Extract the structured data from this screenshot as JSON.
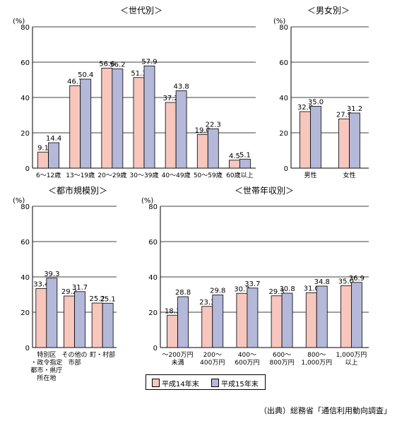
{
  "legend": {
    "items": [
      "平成14年末",
      "平成15年末"
    ]
  },
  "source": "（出典）総務省「通信利用動向調査」",
  "colors": {
    "series1": "#f7c6bd",
    "series2": "#b4b8d9",
    "grid": "#000000",
    "stroke": "#000000"
  },
  "chart_data": [
    {
      "type": "bar",
      "title": "＜世代別＞",
      "unit": "(%)",
      "ylim": [
        0,
        80
      ],
      "yticks": [
        "0",
        "20",
        "40",
        "60",
        "80"
      ],
      "grid": true,
      "categories": [
        [
          "6～12歳"
        ],
        [
          "13～19歳"
        ],
        [
          "20～29歳"
        ],
        [
          "30～39歳"
        ],
        [
          "40～49歳"
        ],
        [
          "50～59歳"
        ],
        [
          "60歳以上"
        ]
      ],
      "series": [
        {
          "name": "平成14年末",
          "values": [
            9.1,
            46.7,
            56.6,
            51.3,
            37.2,
            19.0,
            4.5
          ],
          "labels": [
            "9.1",
            "46.7",
            "56.6",
            "51.3",
            "37.2",
            "19.0",
            "4.5"
          ]
        },
        {
          "name": "平成15年末",
          "values": [
            14.4,
            50.4,
            56.2,
            57.9,
            43.8,
            22.3,
            5.1
          ],
          "labels": [
            "14.4",
            "50.4",
            "56.2",
            "57.9",
            "43.8",
            "22.3",
            "5.1"
          ]
        }
      ]
    },
    {
      "type": "bar",
      "title": "＜男女別＞",
      "unit": "(%)",
      "ylim": [
        0,
        80
      ],
      "yticks": [
        "0",
        "20",
        "40",
        "60",
        "80"
      ],
      "grid": true,
      "categories": [
        [
          "男性"
        ],
        [
          "女性"
        ]
      ],
      "series": [
        {
          "name": "平成14年末",
          "values": [
            32.0,
            27.9
          ],
          "labels": [
            "32.0",
            "27.9"
          ]
        },
        {
          "name": "平成15年末",
          "values": [
            35.0,
            31.2
          ],
          "labels": [
            "35.0",
            "31.2"
          ]
        }
      ]
    },
    {
      "type": "bar",
      "title": "＜都市規模別＞",
      "unit": "(%)",
      "ylim": [
        0,
        80
      ],
      "yticks": [
        "0",
        "20",
        "40",
        "60",
        "80"
      ],
      "grid": true,
      "categories": [
        [
          "特別区",
          "・政令指定",
          "都市・県庁",
          "所在地"
        ],
        [
          "その他の",
          "市部"
        ],
        [
          "町・村部"
        ]
      ],
      "series": [
        {
          "name": "平成14年末",
          "values": [
            33.4,
            29.2,
            25.2
          ],
          "labels": [
            "33.4",
            "29.2",
            "25.2"
          ]
        },
        {
          "name": "平成15年末",
          "values": [
            39.3,
            31.7,
            25.1
          ],
          "labels": [
            "39.3",
            "31.7",
            "25.1"
          ]
        }
      ]
    },
    {
      "type": "bar",
      "title": "＜世帯年収別＞",
      "unit": "(%)",
      "ylim": [
        0,
        80
      ],
      "yticks": [
        "0",
        "20",
        "40",
        "60",
        "80"
      ],
      "grid": true,
      "categories": [
        [
          "～200万円",
          "未満"
        ],
        [
          "200～",
          "400万円"
        ],
        [
          "400～",
          "600万円"
        ],
        [
          "600～",
          "800万円"
        ],
        [
          "800～",
          "1,000万円"
        ],
        [
          "1,000万円",
          "以上"
        ]
      ],
      "series": [
        {
          "name": "平成14年末",
          "values": [
            18.3,
            23.3,
            30.7,
            29.3,
            31.0,
            35.0
          ],
          "labels": [
            "18.3",
            "23.3",
            "30.7",
            "29.3",
            "31.0",
            "35.0"
          ]
        },
        {
          "name": "平成15年末",
          "values": [
            28.8,
            29.8,
            33.7,
            30.8,
            34.8,
            36.9
          ],
          "labels": [
            "28.8",
            "29.8",
            "33.7",
            "30.8",
            "34.8",
            "36.9"
          ]
        }
      ]
    }
  ]
}
